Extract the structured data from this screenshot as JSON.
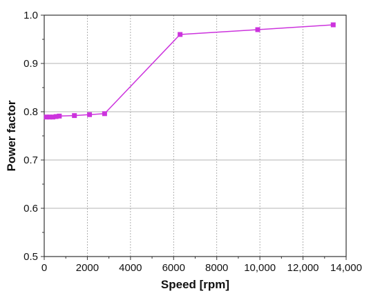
{
  "chart_data": {
    "type": "line",
    "xlabel": "Speed [rpm]",
    "ylabel": "Power factor",
    "xlim": [
      0,
      14000
    ],
    "ylim": [
      0.5,
      1.0
    ],
    "x_ticks": [
      0,
      2000,
      4000,
      6000,
      8000,
      10000,
      12000,
      14000
    ],
    "x_tick_labels": [
      "0",
      "2000",
      "4000",
      "6000",
      "8000",
      "10,000",
      "12,000",
      "14,000"
    ],
    "y_ticks": [
      0.5,
      0.6,
      0.7,
      0.8,
      0.9,
      1.0
    ],
    "y_tick_labels": [
      "0.5",
      "0.6",
      "0.7",
      "0.8",
      "0.9",
      "1.0"
    ],
    "grid": true,
    "series": [
      {
        "color": "#cc33dd",
        "marker": "square",
        "x": [
          100,
          250,
          400,
          550,
          700,
          1400,
          2100,
          2800,
          6300,
          9900,
          13400
        ],
        "y": [
          0.789,
          0.789,
          0.789,
          0.79,
          0.791,
          0.792,
          0.794,
          0.796,
          0.96,
          0.97,
          0.98
        ]
      }
    ]
  }
}
